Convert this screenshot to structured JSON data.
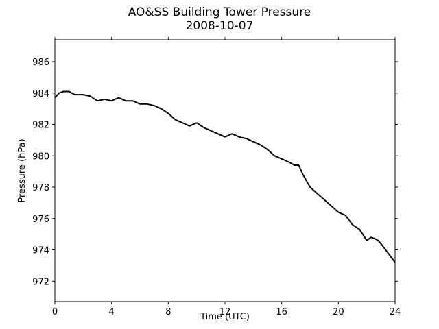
{
  "chart_data": {
    "type": "line",
    "title": "AO&SS Building Tower Pressure",
    "subtitle": "2008-10-07",
    "xlabel": "Time (UTC)",
    "ylabel": "Pressure (hPa)",
    "xlim": [
      0,
      24
    ],
    "ylim": [
      970.7,
      987.4
    ],
    "xticks": [
      0,
      4,
      8,
      12,
      16,
      20,
      24
    ],
    "yticks": [
      972,
      974,
      976,
      978,
      980,
      982,
      984,
      986
    ],
    "grid": false,
    "line_color": "#000000",
    "series": [
      {
        "x": [
          0,
          0.3,
          0.6,
          1.0,
          1.4,
          2.0,
          2.5,
          3.0,
          3.5,
          4.0,
          4.5,
          5.0,
          5.5,
          6.0,
          6.5,
          7.0,
          7.5,
          8.0,
          8.5,
          9.0,
          9.5,
          10.0,
          10.5,
          11.0,
          11.5,
          12.0,
          12.5,
          13.0,
          13.5,
          14.0,
          14.5,
          15.0,
          15.5,
          16.0,
          16.5,
          16.9,
          17.2,
          17.5,
          18.0,
          18.5,
          19.0,
          19.5,
          20.0,
          20.5,
          21.0,
          21.5,
          22.0,
          22.3,
          22.6,
          22.8,
          23.0,
          23.5,
          24.0
        ],
        "y": [
          983.7,
          984.0,
          984.1,
          984.1,
          983.9,
          983.9,
          983.8,
          983.5,
          983.6,
          983.5,
          983.7,
          983.5,
          983.5,
          983.3,
          983.3,
          983.2,
          983.0,
          982.7,
          982.3,
          982.1,
          981.9,
          982.1,
          981.8,
          981.6,
          981.4,
          981.2,
          981.4,
          981.2,
          981.1,
          980.9,
          980.7,
          980.4,
          980.0,
          979.8,
          979.6,
          979.4,
          979.4,
          978.8,
          978.0,
          977.6,
          977.2,
          976.8,
          976.4,
          976.2,
          975.6,
          975.3,
          974.6,
          974.8,
          974.7,
          974.6,
          974.4,
          973.8,
          973.2
        ]
      }
    ]
  }
}
